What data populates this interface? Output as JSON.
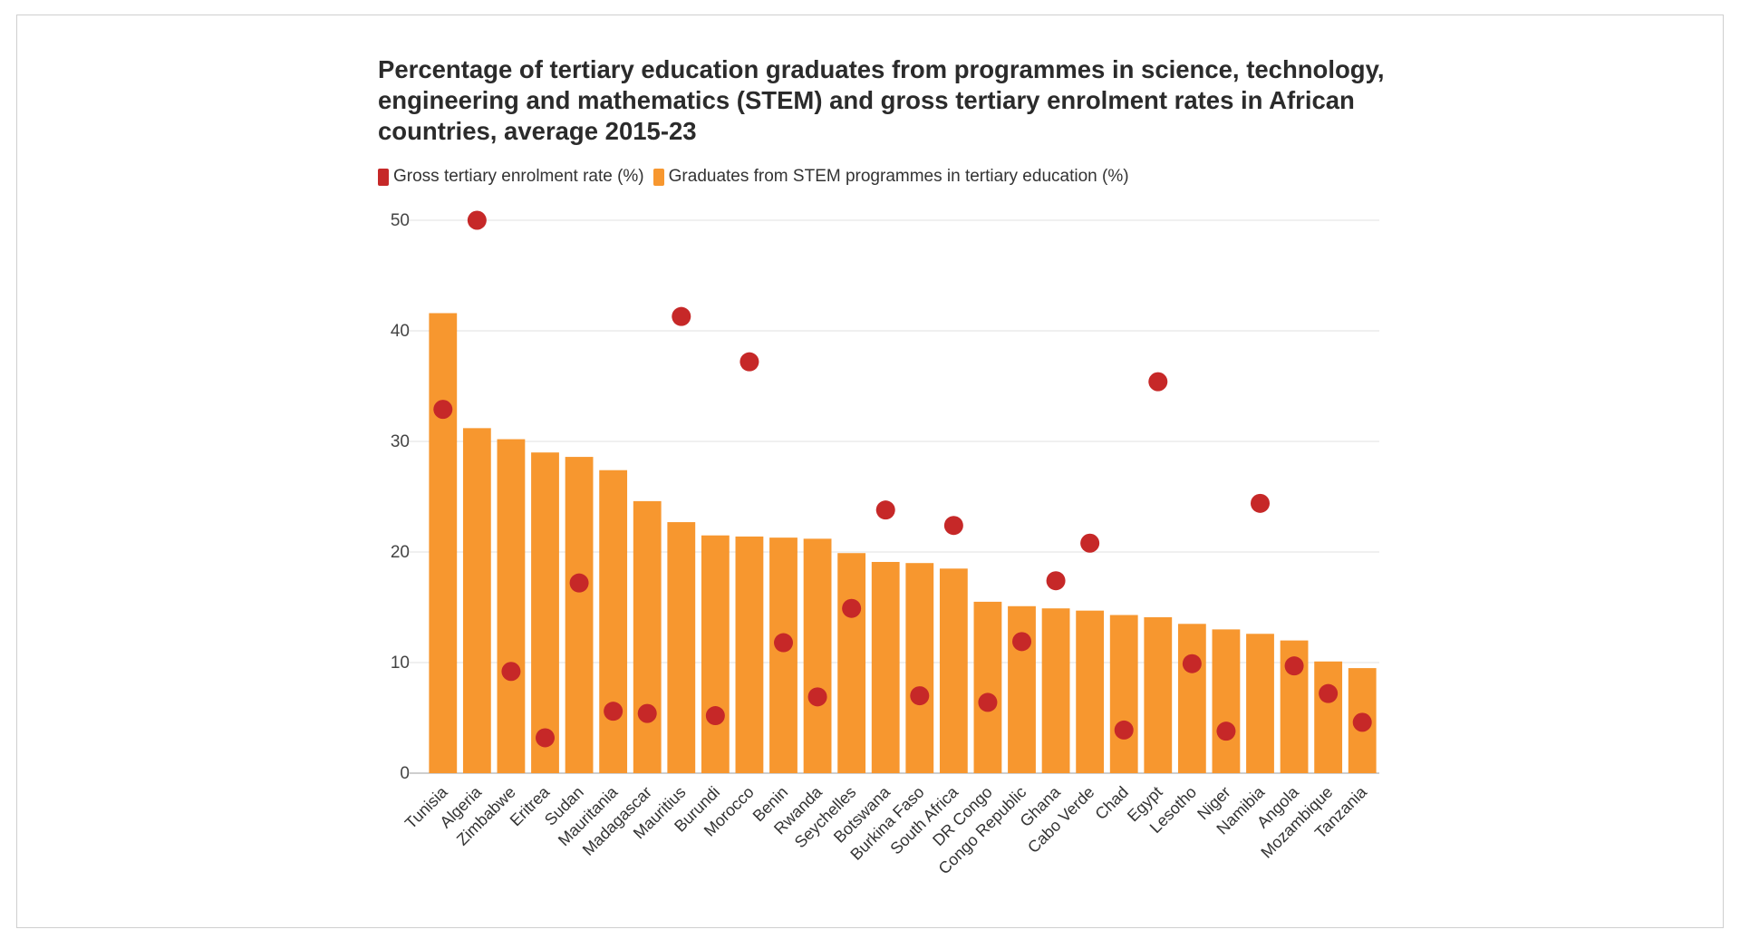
{
  "title": "Percentage of tertiary education graduates from programmes in science, technology, engineering and mathematics (STEM) and gross tertiary enrolment rates in African countries, average 2015-23",
  "legend": {
    "items": [
      {
        "label": "Gross tertiary enrolment rate (%)",
        "color": "#c62828"
      },
      {
        "label": "Graduates from STEM programmes in tertiary education (%)",
        "color": "#f7972f"
      }
    ]
  },
  "chart_data": {
    "type": "bar",
    "title": "Percentage of tertiary education graduates from programmes in science, technology, engineering and mathematics (STEM) and gross tertiary enrolment rates in African countries, average 2015-23",
    "xlabel": "",
    "ylabel": "",
    "ylim": [
      0,
      50
    ],
    "yticks": [
      0,
      10,
      20,
      30,
      40,
      50
    ],
    "grid": true,
    "legend_position": "top-left",
    "categories": [
      "Tunisia",
      "Algeria",
      "Zimbabwe",
      "Eritrea",
      "Sudan",
      "Mauritania",
      "Madagascar",
      "Mauritius",
      "Burundi",
      "Morocco",
      "Benin",
      "Rwanda",
      "Seychelles",
      "Botswana",
      "Burkina Faso",
      "South Africa",
      "DR Congo",
      "Congo Republic",
      "Ghana",
      "Cabo Verde",
      "Chad",
      "Egypt",
      "Lesotho",
      "Niger",
      "Namibia",
      "Angola",
      "Mozambique",
      "Tanzania"
    ],
    "series": [
      {
        "name": "Graduates from STEM programmes in tertiary education (%)",
        "type": "bar",
        "color": "#f7972f",
        "values": [
          41.6,
          31.2,
          30.2,
          29.0,
          28.6,
          27.4,
          24.6,
          22.7,
          21.5,
          21.4,
          21.3,
          21.2,
          19.9,
          19.1,
          19.0,
          18.5,
          15.5,
          15.1,
          14.9,
          14.7,
          14.3,
          14.1,
          13.5,
          13.0,
          12.6,
          12.0,
          10.1,
          9.5
        ]
      },
      {
        "name": "Gross tertiary enrolment rate (%)",
        "type": "scatter",
        "color": "#c62828",
        "values": [
          32.9,
          50.0,
          9.2,
          3.2,
          17.2,
          5.6,
          5.4,
          41.3,
          5.2,
          37.2,
          11.8,
          6.9,
          14.9,
          23.8,
          7.0,
          22.4,
          6.4,
          11.9,
          17.4,
          20.8,
          3.9,
          35.4,
          9.9,
          3.8,
          24.4,
          9.7,
          7.2,
          4.6
        ]
      }
    ]
  }
}
